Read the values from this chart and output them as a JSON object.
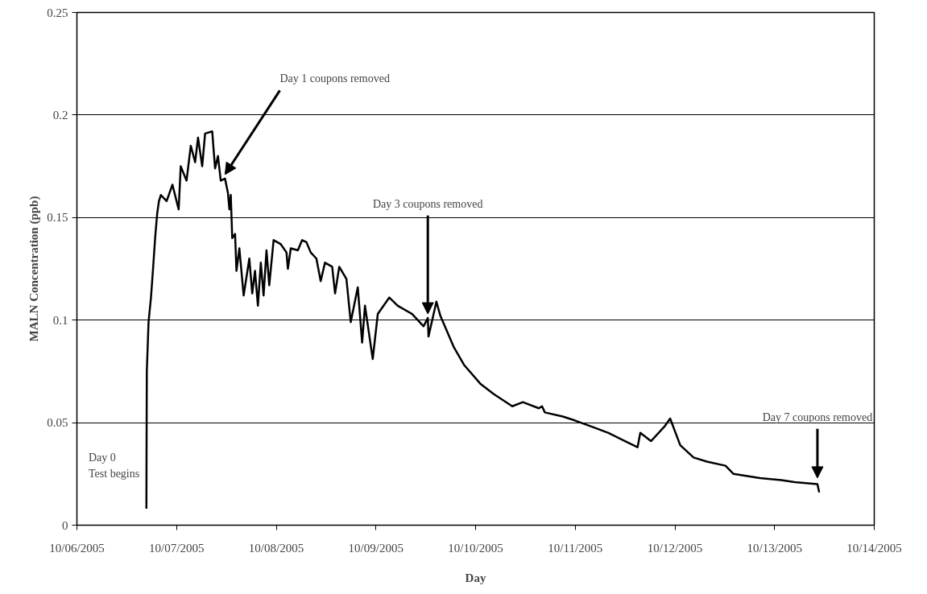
{
  "chart_data": {
    "type": "line",
    "xlabel": "Day",
    "ylabel": "MALN Concentration (ppb)",
    "x": [
      "2005-10-06T16:44",
      "2005-10-06T16:46",
      "2005-10-06T16:50",
      "2005-10-06T17:15",
      "2005-10-06T17:50",
      "2005-10-06T18:20",
      "2005-10-06T18:50",
      "2005-10-06T19:20",
      "2005-10-06T19:45",
      "2005-10-06T20:13",
      "2005-10-06T21:36",
      "2005-10-06T23:00",
      "2005-10-07T00:30",
      "2005-10-07T01:00",
      "2005-10-07T02:24",
      "2005-10-07T03:25",
      "2005-10-07T04:28",
      "2005-10-07T05:10",
      "2005-10-07T06:10",
      "2005-10-07T06:52",
      "2005-10-07T08:35",
      "2005-10-07T09:16",
      "2005-10-07T09:58",
      "2005-10-07T10:38",
      "2005-10-07T11:40",
      "2005-10-07T12:22",
      "2005-10-07T12:43",
      "2005-10-07T13:03",
      "2005-10-07T13:24",
      "2005-10-07T14:05",
      "2005-10-07T14:25",
      "2005-10-07T15:07",
      "2005-10-07T16:09",
      "2005-10-07T17:31",
      "2005-10-07T18:13",
      "2005-10-07T18:53",
      "2005-10-07T19:35",
      "2005-10-07T20:17",
      "2005-10-07T20:57",
      "2005-10-07T21:39",
      "2005-10-07T22:19",
      "2005-10-07T23:22",
      "2005-10-08T01:06",
      "2005-10-08T02:28",
      "2005-10-08T02:48",
      "2005-10-08T03:30",
      "2005-10-08T05:12",
      "2005-10-08T06:14",
      "2005-10-08T07:16",
      "2005-10-08T08:18",
      "2005-10-08T09:40",
      "2005-10-08T10:42",
      "2005-10-08T11:44",
      "2005-10-08T13:28",
      "2005-10-08T14:10",
      "2005-10-08T15:10",
      "2005-10-08T16:54",
      "2005-10-08T17:56",
      "2005-10-08T19:38",
      "2005-10-08T20:41",
      "2005-10-08T21:22",
      "2005-10-08T23:14",
      "2005-10-09T00:27",
      "2005-10-09T03:13",
      "2005-10-09T05:15",
      "2005-10-09T08:43",
      "2005-10-09T11:28",
      "2005-10-09T12:30",
      "2005-10-09T12:40",
      "2005-10-09T14:34",
      "2005-10-09T15:32",
      "2005-10-09T18:43",
      "2005-10-09T21:17",
      "2005-10-10T01:08",
      "2005-10-10T04:21",
      "2005-10-10T08:50",
      "2005-10-10T11:23",
      "2005-10-10T15:14",
      "2005-10-10T16:00",
      "2005-10-10T16:40",
      "2005-10-10T21:00",
      "2005-10-11T00:00",
      "2005-10-11T04:00",
      "2005-10-11T08:00",
      "2005-10-11T12:00",
      "2005-10-11T15:00",
      "2005-10-11T15:40",
      "2005-10-11T18:14",
      "2005-10-11T21:27",
      "2005-10-11T22:51",
      "2005-10-12T01:17",
      "2005-10-12T04:29",
      "2005-10-12T07:41",
      "2005-10-12T12:11",
      "2005-10-12T14:07",
      "2005-10-12T20:30",
      "2005-10-13T01:38",
      "2005-10-13T04:50",
      "2005-10-13T10:19",
      "2005-10-13T10:45"
    ],
    "series": [
      {
        "color": "#000000",
        "values": [
          0.008,
          0.035,
          0.075,
          0.099,
          0.111,
          0.125,
          0.14,
          0.152,
          0.158,
          0.161,
          0.158,
          0.166,
          0.154,
          0.175,
          0.168,
          0.185,
          0.177,
          0.189,
          0.175,
          0.191,
          0.192,
          0.174,
          0.18,
          0.168,
          0.169,
          0.162,
          0.154,
          0.161,
          0.14,
          0.142,
          0.124,
          0.135,
          0.112,
          0.13,
          0.113,
          0.124,
          0.107,
          0.128,
          0.112,
          0.134,
          0.117,
          0.139,
          0.137,
          0.133,
          0.125,
          0.135,
          0.134,
          0.139,
          0.138,
          0.133,
          0.13,
          0.119,
          0.128,
          0.126,
          0.113,
          0.126,
          0.12,
          0.099,
          0.116,
          0.089,
          0.107,
          0.081,
          0.103,
          0.111,
          0.107,
          0.103,
          0.097,
          0.101,
          0.092,
          0.109,
          0.102,
          0.087,
          0.078,
          0.069,
          0.064,
          0.058,
          0.06,
          0.057,
          0.058,
          0.055,
          0.053,
          0.051,
          0.048,
          0.045,
          0.041,
          0.038,
          0.045,
          0.041,
          0.048,
          0.052,
          0.039,
          0.033,
          0.031,
          0.029,
          0.025,
          0.023,
          0.022,
          0.021,
          0.02,
          0.016
        ]
      }
    ],
    "xlim": [
      "2005-10-06",
      "2005-10-14"
    ],
    "xticks": [
      {
        "value": "2005-10-06",
        "label": "10/06/2005"
      },
      {
        "value": "2005-10-07",
        "label": "10/07/2005"
      },
      {
        "value": "2005-10-08",
        "label": "10/08/2005"
      },
      {
        "value": "2005-10-09",
        "label": "10/09/2005"
      },
      {
        "value": "2005-10-10",
        "label": "10/10/2005"
      },
      {
        "value": "2005-10-11",
        "label": "10/11/2005"
      },
      {
        "value": "2005-10-12",
        "label": "10/12/2005"
      },
      {
        "value": "2005-10-13",
        "label": "10/13/2005"
      },
      {
        "value": "2005-10-14",
        "label": "10/14/2005"
      }
    ],
    "ylim": [
      0,
      0.25
    ],
    "yticks": [
      0,
      0.05,
      {
        "value": 0.1,
        "label": "0.1"
      },
      0.15,
      {
        "value": 0.2,
        "label": "0.2"
      },
      0.25
    ],
    "grid": "y",
    "marker": "none",
    "line_style": "solid",
    "annotations": [
      {
        "text": "Day 0\nTest begins",
        "x": "2005-10-06T16:44",
        "y": 0.008
      },
      {
        "text": "Day 1 coupons removed",
        "x": "2005-10-07T11:40",
        "y": 0.169
      },
      {
        "text": "Day 3 coupons removed",
        "x": "2005-10-09T12:30",
        "y": 0.101
      },
      {
        "text": "Day 7 coupons removed",
        "x": "2005-10-13T10:19",
        "y": 0.021
      }
    ]
  }
}
